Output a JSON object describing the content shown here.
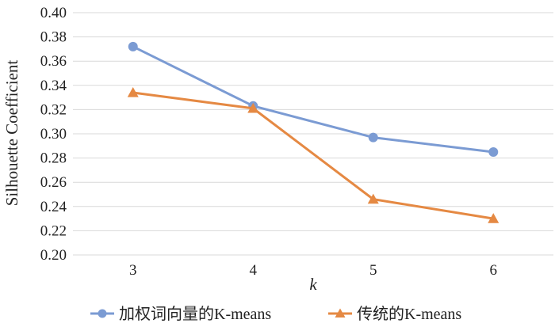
{
  "chart_data": {
    "type": "line",
    "x": [
      3,
      4,
      5,
      6
    ],
    "xlabel": "k",
    "ylabel": "Silhouette Coefficient",
    "ylim": [
      0.2,
      0.4
    ],
    "yticks": [
      "0.20",
      "0.22",
      "0.24",
      "0.26",
      "0.28",
      "0.30",
      "0.32",
      "0.34",
      "0.36",
      "0.38",
      "0.40"
    ],
    "grid": true,
    "legend_position": "bottom",
    "series": [
      {
        "name": "加权词向量的K-means",
        "values": [
          0.372,
          0.323,
          0.297,
          0.285
        ],
        "color": "#7b9bd3",
        "marker": "circle"
      },
      {
        "name": "传统的K-means",
        "values": [
          0.334,
          0.321,
          0.246,
          0.23
        ],
        "color": "#e58943",
        "marker": "triangle"
      }
    ]
  }
}
